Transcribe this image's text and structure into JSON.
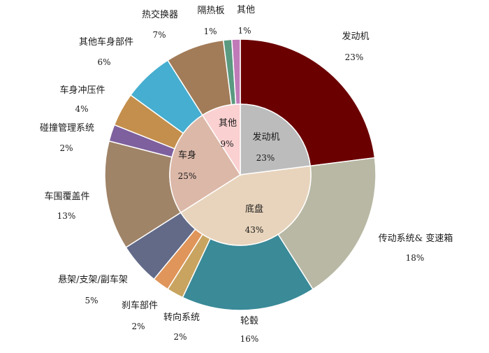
{
  "chart_data": {
    "type": "pie",
    "title": "",
    "outer_ring": [
      {
        "label": "发动机",
        "value": 23,
        "pct_label": "23%",
        "color": "#6b0000"
      },
      {
        "label": "传动系统& 变速箱",
        "value": 18,
        "pct_label": "18%",
        "color": "#b8b8a4"
      },
      {
        "label": "轮毂",
        "value": 16,
        "pct_label": "16%",
        "color": "#3a8a98"
      },
      {
        "label": "转向系统",
        "value": 2,
        "pct_label": "2%",
        "color": "#c8a460"
      },
      {
        "label": "刹车部件",
        "value": 2,
        "pct_label": "2%",
        "color": "#e0955a"
      },
      {
        "label": "悬架/支架/副车架",
        "value": 5,
        "pct_label": "5%",
        "color": "#626a88"
      },
      {
        "label": "车围覆盖件",
        "value": 13,
        "pct_label": "13%",
        "color": "#a08468"
      },
      {
        "label": "碰撞管理系统",
        "value": 2,
        "pct_label": "2%",
        "color": "#7e609e"
      },
      {
        "label": "车身冲压件",
        "value": 4,
        "pct_label": "4%",
        "color": "#c48f4c"
      },
      {
        "label": "其他车身部件",
        "value": 6,
        "pct_label": "6%",
        "color": "#46aed0"
      },
      {
        "label": "热交换器",
        "value": 7,
        "pct_label": "7%",
        "color": "#a27c58"
      },
      {
        "label": "隔热板",
        "value": 1,
        "pct_label": "1%",
        "color": "#5a9a80"
      },
      {
        "label": "其他",
        "value": 1,
        "pct_label": "1%",
        "color": "#c07ab8"
      }
    ],
    "inner_ring": [
      {
        "label": "发动机",
        "value": 23,
        "pct_label": "23%",
        "color": "#bcbcbc"
      },
      {
        "label": "底盘",
        "value": 43,
        "pct_label": "43%",
        "color": "#e8d4bc"
      },
      {
        "label": "车身",
        "value": 25,
        "pct_label": "25%",
        "color": "#dcb8a8"
      },
      {
        "label": "其他",
        "value": 9,
        "pct_label": "9%",
        "color": "#fad0d0"
      }
    ]
  }
}
